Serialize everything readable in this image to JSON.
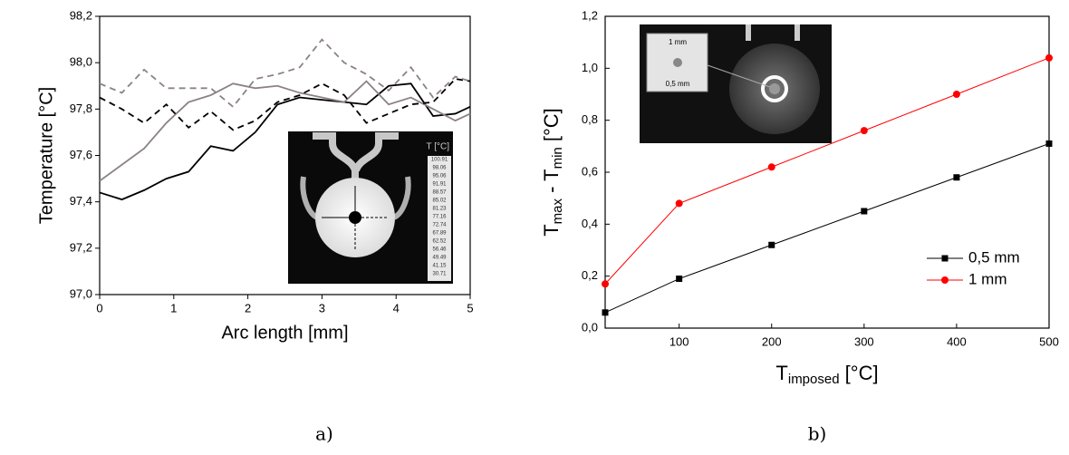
{
  "chart_data": [
    {
      "type": "line",
      "caption": "a)",
      "ylabel": "Temperature [°C]",
      "xlabel": "Arc length [mm]",
      "x": [
        0,
        0.3,
        0.6,
        0.9,
        1.2,
        1.5,
        1.8,
        2.1,
        2.4,
        2.7,
        3.0,
        3.3,
        3.6,
        3.9,
        4.2,
        4.5,
        4.8,
        5.0
      ],
      "series": [
        {
          "color": "#000000",
          "dashed": false,
          "values": [
            97.44,
            97.41,
            97.45,
            97.5,
            97.53,
            97.64,
            97.62,
            97.7,
            97.82,
            97.85,
            97.84,
            97.83,
            97.82,
            97.9,
            97.91,
            97.77,
            97.78,
            97.81
          ]
        },
        {
          "color": "#8c8284",
          "dashed": false,
          "values": [
            97.49,
            97.56,
            97.63,
            97.74,
            97.83,
            97.86,
            97.91,
            97.89,
            97.9,
            97.87,
            97.85,
            97.83,
            97.92,
            97.82,
            97.85,
            97.8,
            97.75,
            97.78
          ]
        },
        {
          "color": "#000000",
          "dashed": true,
          "values": [
            97.85,
            97.8,
            97.74,
            97.82,
            97.72,
            97.79,
            97.71,
            97.75,
            97.83,
            97.86,
            97.91,
            97.86,
            97.74,
            97.78,
            97.82,
            97.83,
            97.93,
            97.92
          ]
        },
        {
          "color": "#8c8284",
          "dashed": true,
          "values": [
            97.91,
            97.87,
            97.97,
            97.89,
            97.89,
            97.89,
            97.81,
            97.93,
            97.95,
            97.98,
            98.1,
            98.0,
            97.95,
            97.88,
            97.98,
            97.85,
            97.94,
            97.92
          ]
        }
      ],
      "xlim": [
        0,
        5
      ],
      "xticks": [
        0,
        1,
        2,
        3,
        4,
        5
      ],
      "ylim": [
        97.0,
        98.2
      ],
      "yticks": [
        {
          "value": 97.0,
          "label": "97,0"
        },
        {
          "value": 97.2,
          "label": "97,2"
        },
        {
          "value": 97.4,
          "label": "97,4"
        },
        {
          "value": 97.6,
          "label": "97,6"
        },
        {
          "value": 97.8,
          "label": "97,8"
        },
        {
          "value": 98.0,
          "label": "98,0"
        },
        {
          "value": 98.2,
          "label": "98,2"
        }
      ],
      "inset": {
        "colorbar_title": "T [°C]",
        "colorbar_labels": [
          "100.91",
          "98.06",
          "95.06",
          "91.91",
          "88.57",
          "85.02",
          "81.23",
          "77.16",
          "72.74",
          "67.89",
          "62.52",
          "56.46",
          "49.49",
          "41.15",
          "30.71"
        ]
      }
    },
    {
      "type": "line",
      "caption": "b)",
      "ylabel": [
        "T",
        "max",
        " - T",
        "min",
        " [°C]"
      ],
      "xlabel": [
        "T",
        "imposed",
        " [°C]"
      ],
      "x": [
        20,
        100,
        200,
        300,
        400,
        500
      ],
      "series": [
        {
          "name": "0,5 mm",
          "color": "#000000",
          "marker": "square",
          "values": [
            0.06,
            0.19,
            0.32,
            0.45,
            0.58,
            0.71
          ]
        },
        {
          "name": "1 mm",
          "color": "#ff0000",
          "marker": "circle",
          "values": [
            0.17,
            0.48,
            0.62,
            0.76,
            0.9,
            1.04
          ]
        }
      ],
      "xlim": [
        20,
        500
      ],
      "xticks": [
        100,
        200,
        300,
        400,
        500
      ],
      "ylim": [
        0,
        1.2
      ],
      "yticks": [
        {
          "value": 0,
          "label": "0,0"
        },
        {
          "value": 0.2,
          "label": "0,2"
        },
        {
          "value": 0.4,
          "label": "0,4"
        },
        {
          "value": 0.6,
          "label": "0,6"
        },
        {
          "value": 0.8,
          "label": "0,8"
        },
        {
          "value": 1.0,
          "label": "1,0"
        },
        {
          "value": 1.2,
          "label": "1,2"
        }
      ],
      "legend": "lower right",
      "inset": {
        "labels": [
          "1 mm",
          "0,5 mm"
        ]
      }
    }
  ]
}
